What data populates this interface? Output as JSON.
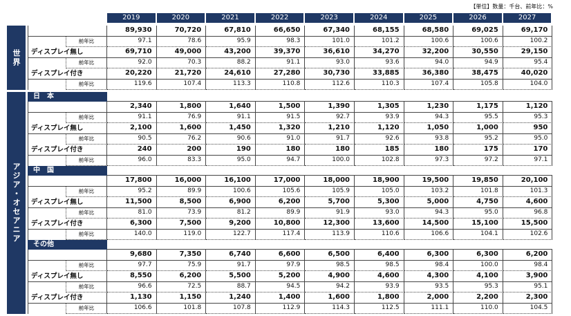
{
  "unit_note": "【単位】数量：千台、前年比：%",
  "years": [
    "2019",
    "2020",
    "2021",
    "2022",
    "2023",
    "2024",
    "2025",
    "2026",
    "2027"
  ],
  "groups": [
    {
      "label": "世界",
      "sections": [
        {
          "rows": [
            {
              "values": [
                "89,930",
                "70,720",
                "67,810",
                "66,650",
                "67,340",
                "68,155",
                "68,580",
                "69,025",
                "69,170"
              ]
            },
            {
              "label": "前年比",
              "values": [
                "97.1",
                "78.6",
                "95.9",
                "98.3",
                "101.0",
                "101.2",
                "100.6",
                "100.6",
                "100.2"
              ]
            },
            {
              "label": "ディスプレイ無し",
              "values": [
                "69,710",
                "49,000",
                "43,200",
                "39,370",
                "36,610",
                "34,270",
                "32,200",
                "30,550",
                "29,150"
              ]
            },
            {
              "label": "前年比",
              "values": [
                "92.0",
                "70.3",
                "88.2",
                "91.1",
                "93.0",
                "93.6",
                "94.0",
                "94.9",
                "95.4"
              ]
            },
            {
              "label": "ディスプレイ付き",
              "values": [
                "20,220",
                "21,720",
                "24,610",
                "27,280",
                "30,730",
                "33,885",
                "36,380",
                "38,475",
                "40,020"
              ]
            },
            {
              "label": "前年比",
              "values": [
                "119.6",
                "107.4",
                "113.3",
                "110.8",
                "112.6",
                "110.3",
                "107.4",
                "105.8",
                "104.0"
              ]
            }
          ]
        }
      ]
    },
    {
      "label": "アジア・オセアニア",
      "sections": [
        {
          "title": "日　本",
          "rows": [
            {
              "values": [
                "2,340",
                "1,800",
                "1,640",
                "1,500",
                "1,390",
                "1,305",
                "1,230",
                "1,175",
                "1,120"
              ]
            },
            {
              "label": "前年比",
              "values": [
                "91.1",
                "76.9",
                "91.1",
                "91.5",
                "92.7",
                "93.9",
                "94.3",
                "95.5",
                "95.3"
              ]
            },
            {
              "label": "ディスプレイ無し",
              "values": [
                "2,100",
                "1,600",
                "1,450",
                "1,320",
                "1,210",
                "1,120",
                "1,050",
                "1,000",
                "950"
              ]
            },
            {
              "label": "前年比",
              "values": [
                "90.5",
                "76.2",
                "90.6",
                "91.0",
                "91.7",
                "92.6",
                "93.8",
                "95.2",
                "95.0"
              ]
            },
            {
              "label": "ディスプレイ付き",
              "values": [
                "240",
                "200",
                "190",
                "180",
                "180",
                "185",
                "180",
                "175",
                "170"
              ]
            },
            {
              "label": "前年比",
              "values": [
                "96.0",
                "83.3",
                "95.0",
                "94.7",
                "100.0",
                "102.8",
                "97.3",
                "97.2",
                "97.1"
              ]
            }
          ]
        },
        {
          "title": "中　国",
          "rows": [
            {
              "values": [
                "17,800",
                "16,000",
                "16,100",
                "17,000",
                "18,000",
                "18,900",
                "19,500",
                "19,850",
                "20,100"
              ]
            },
            {
              "label": "前年比",
              "values": [
                "95.2",
                "89.9",
                "100.6",
                "105.6",
                "105.9",
                "105.0",
                "103.2",
                "101.8",
                "101.3"
              ]
            },
            {
              "label": "ディスプレイ無し",
              "values": [
                "11,500",
                "8,500",
                "6,900",
                "6,200",
                "5,700",
                "5,300",
                "5,000",
                "4,750",
                "4,600"
              ]
            },
            {
              "label": "前年比",
              "values": [
                "81.0",
                "73.9",
                "81.2",
                "89.9",
                "91.9",
                "93.0",
                "94.3",
                "95.0",
                "96.8"
              ]
            },
            {
              "label": "ディスプレイ付き",
              "values": [
                "6,300",
                "7,500",
                "9,200",
                "10,800",
                "12,300",
                "13,600",
                "14,500",
                "15,100",
                "15,500"
              ]
            },
            {
              "label": "前年比",
              "values": [
                "140.0",
                "119.0",
                "122.7",
                "117.4",
                "113.9",
                "110.6",
                "106.6",
                "104.1",
                "102.6"
              ]
            }
          ]
        },
        {
          "title": "その他",
          "rows": [
            {
              "values": [
                "9,680",
                "7,350",
                "6,740",
                "6,600",
                "6,500",
                "6,400",
                "6,300",
                "6,300",
                "6,200"
              ]
            },
            {
              "label": "前年比",
              "values": [
                "97.7",
                "75.9",
                "91.7",
                "97.9",
                "98.5",
                "98.5",
                "98.4",
                "100.0",
                "98.4"
              ]
            },
            {
              "label": "ディスプレイ無し",
              "values": [
                "8,550",
                "6,200",
                "5,500",
                "5,200",
                "4,900",
                "4,600",
                "4,300",
                "4,100",
                "3,900"
              ]
            },
            {
              "label": "前年比",
              "values": [
                "96.6",
                "72.5",
                "88.7",
                "94.5",
                "94.2",
                "93.9",
                "93.5",
                "95.3",
                "95.1"
              ]
            },
            {
              "label": "ディスプレイ付き",
              "values": [
                "1,130",
                "1,150",
                "1,240",
                "1,400",
                "1,600",
                "1,800",
                "2,000",
                "2,200",
                "2,300"
              ]
            },
            {
              "label": "前年比",
              "values": [
                "106.6",
                "101.8",
                "107.8",
                "112.9",
                "114.3",
                "112.5",
                "111.1",
                "110.0",
                "104.5"
              ]
            }
          ]
        }
      ]
    }
  ]
}
